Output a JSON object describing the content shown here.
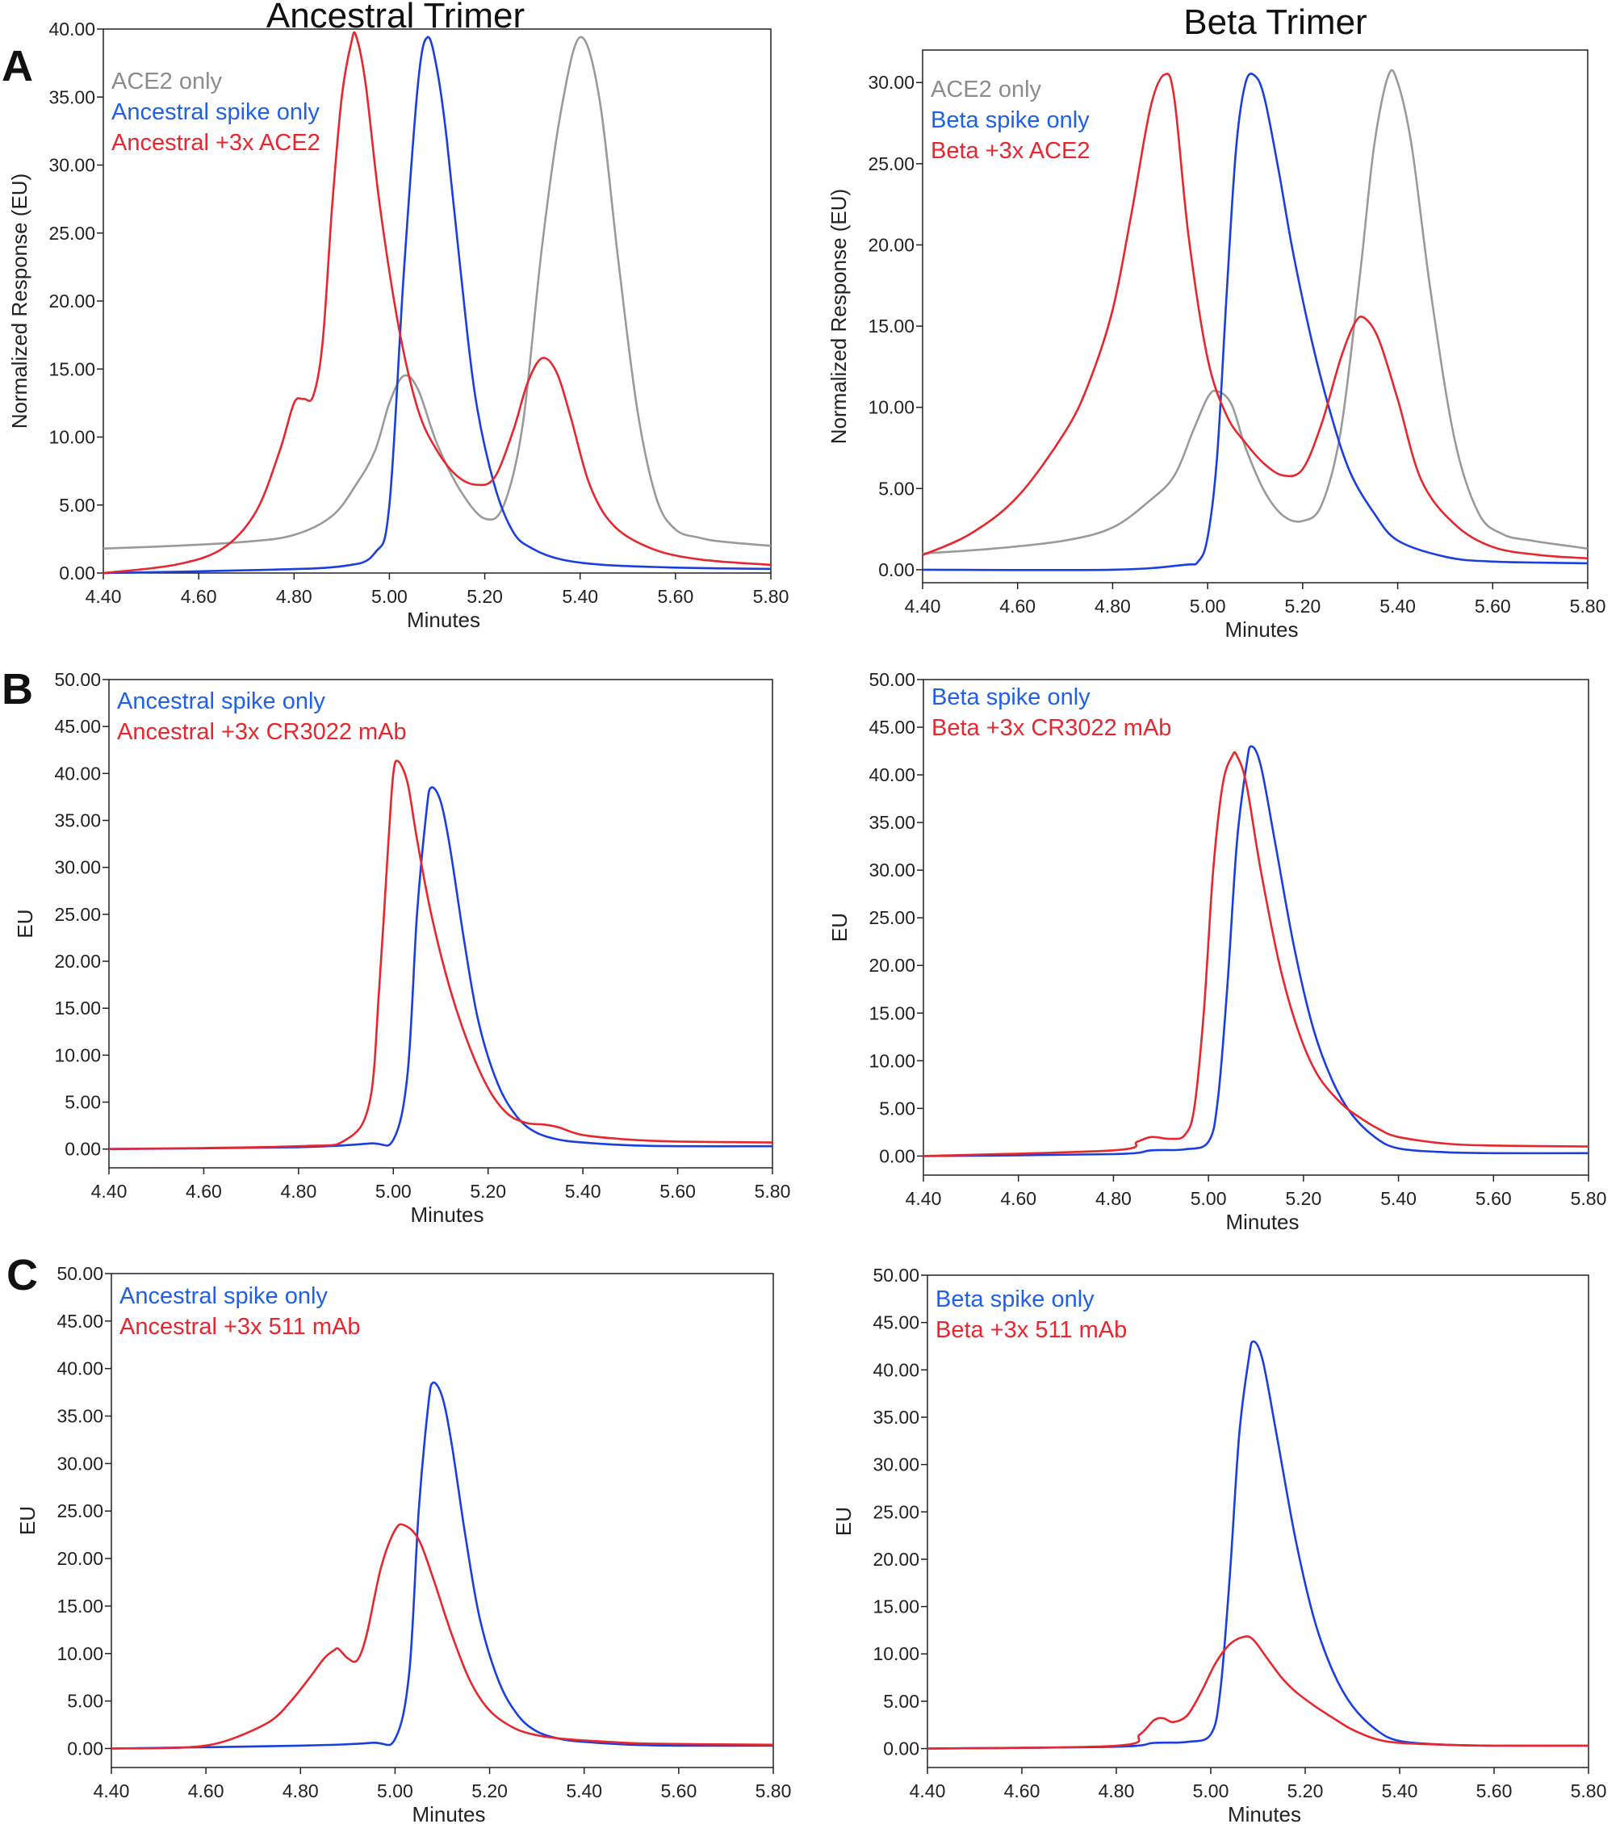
{
  "figure": {
    "column_titles": [
      "Ancestral Trimer",
      "Beta Trimer"
    ],
    "row_labels": [
      "A",
      "B",
      "C"
    ]
  },
  "colors": {
    "gray": "#9a9a9a",
    "blue": "#1a3fe0",
    "red": "#e8262d",
    "legend_blue": "#2060e8",
    "legend_red": "#e8262d",
    "legend_gray": "#8c8c8c"
  },
  "chart_data": [
    {
      "id": "A-ancestral",
      "type": "line",
      "title": "",
      "xlabel": "Minutes",
      "ylabel": "Normalized Response (EU)",
      "xlim": [
        4.4,
        5.8
      ],
      "ylim": [
        0,
        40
      ],
      "x_ticks": [
        "4.40",
        "4.60",
        "4.80",
        "5.00",
        "5.20",
        "5.40",
        "5.60",
        "5.80"
      ],
      "y_ticks": [
        "0.00",
        "5.00",
        "10.00",
        "15.00",
        "20.00",
        "25.00",
        "30.00",
        "35.00",
        "40.00"
      ],
      "legend": "top-left",
      "series": [
        {
          "name": "ACE2 only",
          "color": "gray",
          "x": [
            4.4,
            4.55,
            4.7,
            4.8,
            4.88,
            4.93,
            4.97,
            5.0,
            5.03,
            5.06,
            5.1,
            5.15,
            5.2,
            5.24,
            5.28,
            5.32,
            5.36,
            5.4,
            5.44,
            5.48,
            5.52,
            5.56,
            5.6,
            5.65,
            5.7,
            5.8
          ],
          "y": [
            1.8,
            2.0,
            2.3,
            2.8,
            4.2,
            6.5,
            9.0,
            12.5,
            14.5,
            13.5,
            9.5,
            6.0,
            4.0,
            5.0,
            11.0,
            24.0,
            34.0,
            39.4,
            35.0,
            23.0,
            12.0,
            5.5,
            3.2,
            2.6,
            2.3,
            2.0
          ]
        },
        {
          "name": "Ancestral spike only",
          "color": "blue",
          "x": [
            4.4,
            4.7,
            4.9,
            4.97,
            5.0,
            5.03,
            5.06,
            5.08,
            5.1,
            5.12,
            5.15,
            5.18,
            5.22,
            5.26,
            5.3,
            5.36,
            5.45,
            5.6,
            5.8
          ],
          "y": [
            0.0,
            0.2,
            0.5,
            1.5,
            5.0,
            22.0,
            36.0,
            39.4,
            37.0,
            32.0,
            22.0,
            13.0,
            6.5,
            3.0,
            1.8,
            1.0,
            0.6,
            0.4,
            0.3
          ]
        },
        {
          "name": "Ancestral +3x ACE2",
          "color": "red",
          "x": [
            4.4,
            4.55,
            4.65,
            4.72,
            4.77,
            4.8,
            4.82,
            4.84,
            4.86,
            4.88,
            4.9,
            4.92,
            4.93,
            4.95,
            4.98,
            5.02,
            5.06,
            5.1,
            5.14,
            5.18,
            5.22,
            5.26,
            5.29,
            5.32,
            5.35,
            5.38,
            5.42,
            5.47,
            5.55,
            5.65,
            5.8
          ],
          "y": [
            0.0,
            0.6,
            1.8,
            4.5,
            9.0,
            12.5,
            12.8,
            13.0,
            17.0,
            27.0,
            35.0,
            39.0,
            39.5,
            36.0,
            27.0,
            18.0,
            12.0,
            9.0,
            7.2,
            6.5,
            7.0,
            10.5,
            14.0,
            15.8,
            14.8,
            11.5,
            6.5,
            3.5,
            1.8,
            1.0,
            0.6
          ]
        }
      ]
    },
    {
      "id": "A-beta",
      "type": "line",
      "title": "",
      "xlabel": "Minutes",
      "ylabel": "Normalized Response (EU)",
      "xlim": [
        4.4,
        5.8
      ],
      "ylim": [
        -0.8,
        32
      ],
      "x_ticks": [
        "4.40",
        "4.60",
        "4.80",
        "5.00",
        "5.20",
        "5.40",
        "5.60",
        "5.80"
      ],
      "y_ticks": [
        "0.00",
        "5.00",
        "10.00",
        "15.00",
        "20.00",
        "25.00",
        "30.00"
      ],
      "legend": "top-left",
      "series": [
        {
          "name": "ACE2 only",
          "color": "gray",
          "x": [
            4.4,
            4.55,
            4.7,
            4.8,
            4.88,
            4.93,
            4.97,
            5.0,
            5.02,
            5.05,
            5.08,
            5.12,
            5.16,
            5.2,
            5.24,
            5.28,
            5.32,
            5.35,
            5.38,
            5.4,
            5.43,
            5.47,
            5.52,
            5.57,
            5.62,
            5.68,
            5.8
          ],
          "y": [
            1.0,
            1.3,
            1.8,
            2.6,
            4.3,
            5.8,
            8.6,
            10.6,
            11.0,
            10.2,
            7.5,
            4.8,
            3.3,
            3.0,
            4.0,
            8.5,
            18.0,
            26.0,
            30.4,
            30.0,
            26.0,
            17.0,
            8.0,
            3.5,
            2.2,
            1.8,
            1.3
          ]
        },
        {
          "name": "Beta spike only",
          "color": "blue",
          "x": [
            4.4,
            4.8,
            4.95,
            4.98,
            5.0,
            5.02,
            5.04,
            5.06,
            5.08,
            5.1,
            5.12,
            5.15,
            5.18,
            5.22,
            5.26,
            5.3,
            5.35,
            5.4,
            5.5,
            5.6,
            5.8
          ],
          "y": [
            0.0,
            0.0,
            0.3,
            0.5,
            2.0,
            7.0,
            17.0,
            26.0,
            30.0,
            30.4,
            29.0,
            24.5,
            19.5,
            14.0,
            9.5,
            6.0,
            3.5,
            1.8,
            0.8,
            0.5,
            0.4
          ]
        },
        {
          "name": "Beta +3x ACE2",
          "color": "red",
          "x": [
            4.4,
            4.5,
            4.6,
            4.7,
            4.75,
            4.8,
            4.84,
            4.88,
            4.91,
            4.93,
            4.96,
            5.0,
            5.04,
            5.08,
            5.12,
            5.16,
            5.2,
            5.24,
            5.28,
            5.31,
            5.33,
            5.36,
            5.4,
            5.45,
            5.52,
            5.6,
            5.7,
            5.8
          ],
          "y": [
            0.9,
            2.2,
            4.5,
            8.5,
            11.5,
            16.0,
            22.0,
            28.5,
            30.5,
            29.0,
            20.5,
            13.0,
            9.5,
            7.8,
            6.5,
            5.8,
            6.2,
            9.0,
            13.0,
            15.2,
            15.5,
            14.2,
            10.5,
            5.5,
            2.8,
            1.4,
            0.9,
            0.7
          ]
        }
      ]
    },
    {
      "id": "B-ancestral",
      "type": "line",
      "title": "",
      "xlabel": "Minutes",
      "ylabel": "EU",
      "xlim": [
        4.4,
        5.8
      ],
      "ylim": [
        -2,
        50
      ],
      "x_ticks": [
        "4.40",
        "4.60",
        "4.80",
        "5.00",
        "5.20",
        "5.40",
        "5.60",
        "5.80"
      ],
      "y_ticks": [
        "0.00",
        "5.00",
        "10.00",
        "15.00",
        "20.00",
        "25.00",
        "30.00",
        "35.00",
        "40.00",
        "45.00",
        "50.00"
      ],
      "legend": "top-left",
      "series": [
        {
          "name": "Ancestral spike only",
          "color": "blue",
          "x": [
            4.4,
            4.8,
            4.95,
            5.0,
            5.03,
            5.05,
            5.07,
            5.08,
            5.1,
            5.12,
            5.15,
            5.18,
            5.22,
            5.26,
            5.3,
            5.35,
            5.4,
            5.5,
            5.6,
            5.8
          ],
          "y": [
            0.0,
            0.2,
            0.6,
            1.0,
            8.0,
            25.0,
            36.0,
            38.5,
            37.0,
            32.0,
            22.0,
            13.5,
            7.0,
            3.5,
            1.8,
            1.0,
            0.7,
            0.4,
            0.3,
            0.3
          ]
        },
        {
          "name": "Ancestral +3x CR3022 mAb",
          "color": "red",
          "x": [
            4.4,
            4.8,
            4.9,
            4.95,
            4.97,
            4.99,
            5.0,
            5.01,
            5.03,
            5.05,
            5.08,
            5.12,
            5.16,
            5.2,
            5.24,
            5.28,
            5.32,
            5.35,
            5.4,
            5.5,
            5.6,
            5.8
          ],
          "y": [
            0.0,
            0.3,
            1.0,
            5.0,
            17.0,
            33.0,
            40.0,
            41.3,
            39.0,
            33.0,
            25.0,
            17.0,
            11.0,
            6.5,
            3.8,
            2.8,
            2.6,
            2.3,
            1.5,
            1.0,
            0.8,
            0.7
          ]
        }
      ]
    },
    {
      "id": "B-beta",
      "type": "line",
      "title": "",
      "xlabel": "Minutes",
      "ylabel": "EU",
      "xlim": [
        4.4,
        5.8
      ],
      "ylim": [
        -2,
        50
      ],
      "x_ticks": [
        "4.40",
        "4.60",
        "4.80",
        "5.00",
        "5.20",
        "5.40",
        "5.60",
        "5.80"
      ],
      "y_ticks": [
        "0.00",
        "5.00",
        "10.00",
        "15.00",
        "20.00",
        "25.00",
        "30.00",
        "35.00",
        "40.00",
        "45.00",
        "50.00"
      ],
      "legend": "top-left",
      "series": [
        {
          "name": "Beta spike only",
          "color": "blue",
          "x": [
            4.4,
            4.8,
            4.88,
            4.95,
            5.0,
            5.02,
            5.04,
            5.06,
            5.08,
            5.09,
            5.11,
            5.14,
            5.18,
            5.22,
            5.26,
            5.3,
            5.35,
            5.4,
            5.5,
            5.6,
            5.8
          ],
          "y": [
            0.0,
            0.2,
            0.6,
            0.7,
            1.5,
            6.0,
            18.0,
            33.0,
            41.0,
            43.0,
            41.0,
            33.0,
            22.0,
            13.5,
            8.0,
            4.5,
            2.0,
            0.8,
            0.4,
            0.3,
            0.3
          ]
        },
        {
          "name": "Beta +3x CR3022 mAb",
          "color": "red",
          "x": [
            4.4,
            4.8,
            4.85,
            4.88,
            4.92,
            4.95,
            4.97,
            4.99,
            5.01,
            5.03,
            5.05,
            5.06,
            5.08,
            5.11,
            5.15,
            5.19,
            5.23,
            5.28,
            5.32,
            5.36,
            5.4,
            5.5,
            5.6,
            5.8
          ],
          "y": [
            0.0,
            0.6,
            1.5,
            2.0,
            1.8,
            2.2,
            5.0,
            15.0,
            30.0,
            39.0,
            42.0,
            42.0,
            39.0,
            30.0,
            20.0,
            13.0,
            8.5,
            5.5,
            4.0,
            2.8,
            2.0,
            1.3,
            1.1,
            1.0
          ]
        }
      ]
    },
    {
      "id": "C-ancestral",
      "type": "line",
      "title": "",
      "xlabel": "Minutes",
      "ylabel": "EU",
      "xlim": [
        4.4,
        5.8
      ],
      "ylim": [
        -2,
        50
      ],
      "x_ticks": [
        "4.40",
        "4.60",
        "4.80",
        "5.00",
        "5.20",
        "5.40",
        "5.60",
        "5.80"
      ],
      "y_ticks": [
        "0.00",
        "5.00",
        "10.00",
        "15.00",
        "20.00",
        "25.00",
        "30.00",
        "35.00",
        "40.00",
        "45.00",
        "50.00"
      ],
      "legend": "top-left",
      "series": [
        {
          "name": "Ancestral spike only",
          "color": "blue",
          "x": [
            4.4,
            4.8,
            4.95,
            5.0,
            5.03,
            5.05,
            5.07,
            5.08,
            5.1,
            5.12,
            5.15,
            5.18,
            5.22,
            5.26,
            5.3,
            5.35,
            5.4,
            5.5,
            5.6,
            5.8
          ],
          "y": [
            0.0,
            0.3,
            0.6,
            1.0,
            8.0,
            25.0,
            36.0,
            38.5,
            37.0,
            32.0,
            22.0,
            13.5,
            7.0,
            3.5,
            1.8,
            1.0,
            0.7,
            0.4,
            0.3,
            0.3
          ]
        },
        {
          "name": "Ancestral +3x 511 mAb",
          "color": "red",
          "x": [
            4.4,
            4.55,
            4.62,
            4.68,
            4.74,
            4.78,
            4.82,
            4.85,
            4.87,
            4.88,
            4.9,
            4.92,
            4.94,
            4.97,
            5.0,
            5.02,
            5.05,
            5.08,
            5.12,
            5.16,
            5.2,
            5.25,
            5.3,
            5.36,
            5.45,
            5.55,
            5.8
          ],
          "y": [
            0.0,
            0.1,
            0.5,
            1.5,
            3.0,
            5.0,
            7.5,
            9.5,
            10.3,
            10.5,
            9.5,
            9.3,
            12.0,
            19.0,
            23.0,
            23.5,
            22.0,
            18.0,
            12.0,
            7.0,
            4.0,
            2.2,
            1.4,
            1.0,
            0.7,
            0.5,
            0.4
          ]
        }
      ]
    },
    {
      "id": "C-beta",
      "type": "line",
      "title": "",
      "xlabel": "Minutes",
      "ylabel": "EU",
      "xlim": [
        4.4,
        5.8
      ],
      "ylim": [
        -2,
        50
      ],
      "x_ticks": [
        "4.40",
        "4.60",
        "4.80",
        "5.00",
        "5.20",
        "5.40",
        "5.60",
        "5.80"
      ],
      "y_ticks": [
        "0.00",
        "5.00",
        "10.00",
        "15.00",
        "20.00",
        "25.00",
        "30.00",
        "35.00",
        "40.00",
        "45.00",
        "50.00"
      ],
      "legend": "top-left",
      "series": [
        {
          "name": "Beta spike only",
          "color": "blue",
          "x": [
            4.4,
            4.8,
            4.88,
            4.95,
            5.0,
            5.02,
            5.04,
            5.06,
            5.08,
            5.09,
            5.11,
            5.14,
            5.18,
            5.22,
            5.26,
            5.3,
            5.35,
            5.4,
            5.5,
            5.6,
            5.8
          ],
          "y": [
            0.0,
            0.2,
            0.6,
            0.7,
            1.5,
            6.0,
            18.0,
            33.0,
            41.0,
            43.0,
            41.0,
            33.0,
            22.0,
            13.5,
            8.0,
            4.5,
            2.0,
            0.8,
            0.4,
            0.3,
            0.3
          ]
        },
        {
          "name": "Beta +3x 511 mAb",
          "color": "red",
          "x": [
            4.4,
            4.8,
            4.85,
            4.88,
            4.9,
            4.92,
            4.95,
            4.98,
            5.01,
            5.04,
            5.07,
            5.09,
            5.12,
            5.15,
            5.18,
            5.22,
            5.26,
            5.3,
            5.35,
            5.4,
            5.5,
            5.6,
            5.8
          ],
          "y": [
            0.0,
            0.3,
            1.5,
            3.0,
            3.2,
            2.8,
            3.5,
            6.0,
            9.0,
            11.0,
            11.8,
            11.5,
            9.5,
            7.5,
            6.0,
            4.5,
            3.2,
            2.0,
            1.0,
            0.6,
            0.4,
            0.3,
            0.3
          ]
        }
      ]
    }
  ]
}
